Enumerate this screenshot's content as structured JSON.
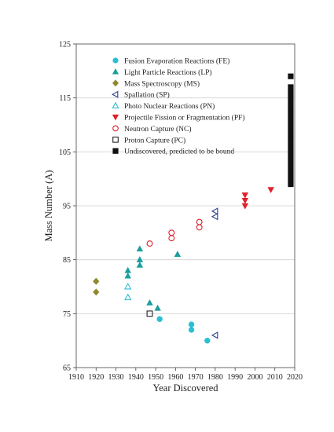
{
  "chart_data": {
    "type": "scatter",
    "title": "",
    "xlabel": "Year Discovered",
    "ylabel": "Mass Number (A)",
    "xlim": [
      1910,
      2020
    ],
    "ylim": [
      65,
      125
    ],
    "x_ticks": [
      1910,
      1920,
      1930,
      1940,
      1950,
      1960,
      1970,
      1980,
      1990,
      2000,
      2010,
      2020
    ],
    "y_ticks": [
      65,
      75,
      85,
      95,
      105,
      115,
      125
    ],
    "grid": "horizontal",
    "legend_placement": "top-left",
    "series": [
      {
        "name": "Fusion Evaporation Reactions (FE)",
        "marker": "circle",
        "filled": true,
        "color": "#2bbfd4",
        "points": [
          [
            1952,
            74
          ],
          [
            1968,
            73
          ],
          [
            1968,
            72
          ],
          [
            1976,
            70
          ]
        ]
      },
      {
        "name": "Light Particle Reactions (LP)",
        "marker": "triangle-up",
        "filled": true,
        "color": "#1a9e9e",
        "points": [
          [
            1936,
            83
          ],
          [
            1936,
            82
          ],
          [
            1942,
            87
          ],
          [
            1942,
            85
          ],
          [
            1942,
            84
          ],
          [
            1947,
            77
          ],
          [
            1951,
            76
          ],
          [
            1961,
            86
          ]
        ]
      },
      {
        "name": "Mass Spectroscopy (MS)",
        "marker": "diamond",
        "filled": true,
        "color": "#8e8a2c",
        "points": [
          [
            1920,
            81
          ],
          [
            1920,
            79
          ]
        ]
      },
      {
        "name": "Spallation (SP)",
        "marker": "triangle-left",
        "filled": false,
        "color": "#2c3e8f",
        "points": [
          [
            1980,
            94
          ],
          [
            1980,
            93
          ],
          [
            1980,
            71
          ]
        ]
      },
      {
        "name": "Photo Nuclear Reactions (PN)",
        "marker": "triangle-up",
        "filled": false,
        "color": "#2bbfd4",
        "points": [
          [
            1936,
            80
          ],
          [
            1936,
            78
          ]
        ]
      },
      {
        "name": "Projectile Fission or Fragmentation (PF)",
        "marker": "triangle-down",
        "filled": true,
        "color": "#e0202a",
        "points": [
          [
            1995,
            97
          ],
          [
            1995,
            96
          ],
          [
            1995,
            95
          ],
          [
            2008,
            98
          ]
        ]
      },
      {
        "name": "Neutron Capture (NC)",
        "marker": "circle",
        "filled": false,
        "color": "#e0202a",
        "points": [
          [
            1947,
            88
          ],
          [
            1958,
            90
          ],
          [
            1958,
            89
          ],
          [
            1972,
            92
          ],
          [
            1972,
            91
          ]
        ]
      },
      {
        "name": "Proton Capture (PC)",
        "marker": "square",
        "filled": false,
        "color": "#222222",
        "points": [
          [
            1947,
            75
          ]
        ]
      },
      {
        "name": "Undiscovered, predicted to be bound",
        "marker": "square",
        "filled": true,
        "color": "#111111",
        "points": [
          [
            2018,
            99
          ],
          [
            2018,
            100
          ],
          [
            2018,
            101
          ],
          [
            2018,
            102
          ],
          [
            2018,
            103
          ],
          [
            2018,
            104
          ],
          [
            2018,
            105
          ],
          [
            2018,
            106
          ],
          [
            2018,
            107
          ],
          [
            2018,
            108
          ],
          [
            2018,
            109
          ],
          [
            2018,
            110
          ],
          [
            2018,
            111
          ],
          [
            2018,
            112
          ],
          [
            2018,
            113
          ],
          [
            2018,
            114
          ],
          [
            2018,
            115
          ],
          [
            2018,
            116
          ],
          [
            2018,
            117
          ],
          [
            2018,
            119
          ]
        ]
      }
    ]
  }
}
